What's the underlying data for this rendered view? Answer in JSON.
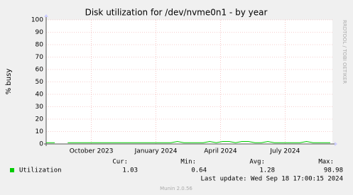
{
  "chart_data": {
    "type": "line",
    "title": "Disk utilization for /dev/nvme0n1 - by year",
    "y_label": "% busy",
    "x": [
      -2.1,
      -1.9,
      -1.7,
      -1.4,
      -1.1,
      -0.8,
      -0.5,
      -0.2,
      0.1,
      0.4,
      0.7,
      1.0,
      1.3,
      1.6,
      1.9,
      2.2,
      2.5,
      2.8,
      3.1,
      3.4,
      3.7,
      4.0,
      4.3,
      4.6,
      4.9,
      5.2,
      5.5,
      5.8,
      6.1,
      6.4,
      6.7,
      7.0,
      7.3,
      7.6,
      7.9,
      8.2,
      8.5,
      8.8,
      9.1,
      9.4,
      9.7,
      10.0,
      10.3,
      10.6,
      10.9,
      11.1
    ],
    "xlim": [
      -2.1,
      11.2
    ],
    "xticks": [
      {
        "value": 0,
        "label": "October 2023"
      },
      {
        "value": 3,
        "label": "January 2024"
      },
      {
        "value": 6,
        "label": "April 2024"
      },
      {
        "value": 9,
        "label": "July 2024"
      }
    ],
    "ylim": [
      0,
      100
    ],
    "yticks": [
      0,
      10,
      20,
      30,
      40,
      50,
      60,
      70,
      80,
      90,
      100
    ],
    "grid": true,
    "series": [
      {
        "name": "Utilization",
        "color": "#00cc00",
        "values": [
          1,
          1,
          1,
          null,
          1,
          1,
          1,
          1,
          1,
          1,
          1,
          1,
          1,
          1,
          1,
          1,
          1,
          1,
          1,
          1,
          1,
          2,
          1,
          1,
          1,
          1,
          2,
          1,
          2,
          2,
          1,
          2,
          2,
          1,
          1,
          2,
          1,
          1,
          1,
          1,
          1,
          2,
          1,
          1,
          1,
          1
        ],
        "stats": [
          1.03,
          0.64,
          1.28,
          98.98
        ]
      }
    ],
    "stats_labels": [
      "Cur:",
      "Min:",
      "Avg:",
      "Max:"
    ],
    "last_update": "Last update: Wed Sep 18 17:00:15 2024",
    "footer": "Munin 2.0.56",
    "watermark": "RRDTOOL / TOBI OETIKER"
  }
}
